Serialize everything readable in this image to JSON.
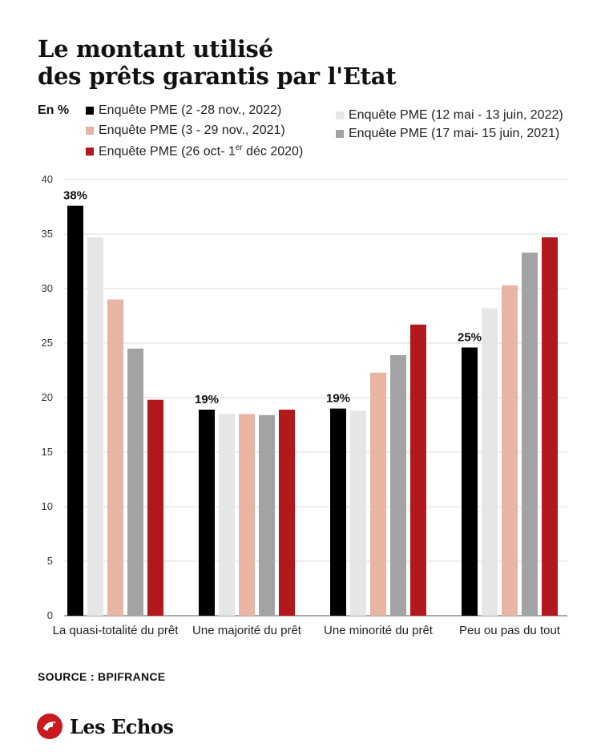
{
  "title_line1": "Le montant utilisé",
  "title_line2": "des prêts garantis par l'Etat",
  "unit_label": "En %",
  "source": "SOURCE : BPIFRANCE",
  "brand": "Les Echos",
  "brand_color": "#c8191f",
  "legend": [
    {
      "label": "Enquête PME (2 -28 nov., 2022)",
      "color": "#000000"
    },
    {
      "label": "Enquête PME (3 - 29 nov., 2021)",
      "color": "#e8b4a4"
    },
    {
      "label_main": "Enquête PME (26 oct- 1",
      "label_sup": "er",
      "label_end": " déc 2020)",
      "color": "#b3181d"
    },
    {
      "label": "Enquête PME (12 mai - 13 juin, 2022)",
      "color": "#e6e6e6"
    },
    {
      "label": "Enquête PME (17 mai- 15 juin, 2021)",
      "color": "#a3a3a3"
    }
  ],
  "chart_data": {
    "type": "bar",
    "categories": [
      "La quasi-totalité du prêt",
      "Une majorité du prêt",
      "Une minorité du prêt",
      "Peu ou pas du tout"
    ],
    "series": [
      {
        "name": "Enquête PME (2 -28 nov., 2022)",
        "color": "#000000",
        "values": [
          37.6,
          18.9,
          19.0,
          24.6
        ]
      },
      {
        "name": "Enquête PME (12 mai - 13 juin, 2022)",
        "color": "#e6e6e6",
        "values": [
          34.7,
          18.5,
          18.8,
          28.2
        ]
      },
      {
        "name": "Enquête PME (3 - 29 nov., 2021)",
        "color": "#e8b4a4",
        "values": [
          29.0,
          18.5,
          22.3,
          30.3
        ]
      },
      {
        "name": "Enquête PME (17 mai- 15 juin, 2021)",
        "color": "#a3a3a3",
        "values": [
          24.5,
          18.4,
          23.9,
          33.3
        ]
      },
      {
        "name": "Enquête PME (26 oct- 1er déc 2020)",
        "color": "#b3181d",
        "values": [
          19.8,
          18.9,
          26.7,
          34.7
        ]
      }
    ],
    "data_labels": [
      "38%",
      "19%",
      "19%",
      "25%"
    ],
    "ylim": [
      0,
      40
    ],
    "yticks": [
      0,
      5,
      10,
      15,
      20,
      25,
      30,
      35,
      40
    ],
    "grid": true
  }
}
